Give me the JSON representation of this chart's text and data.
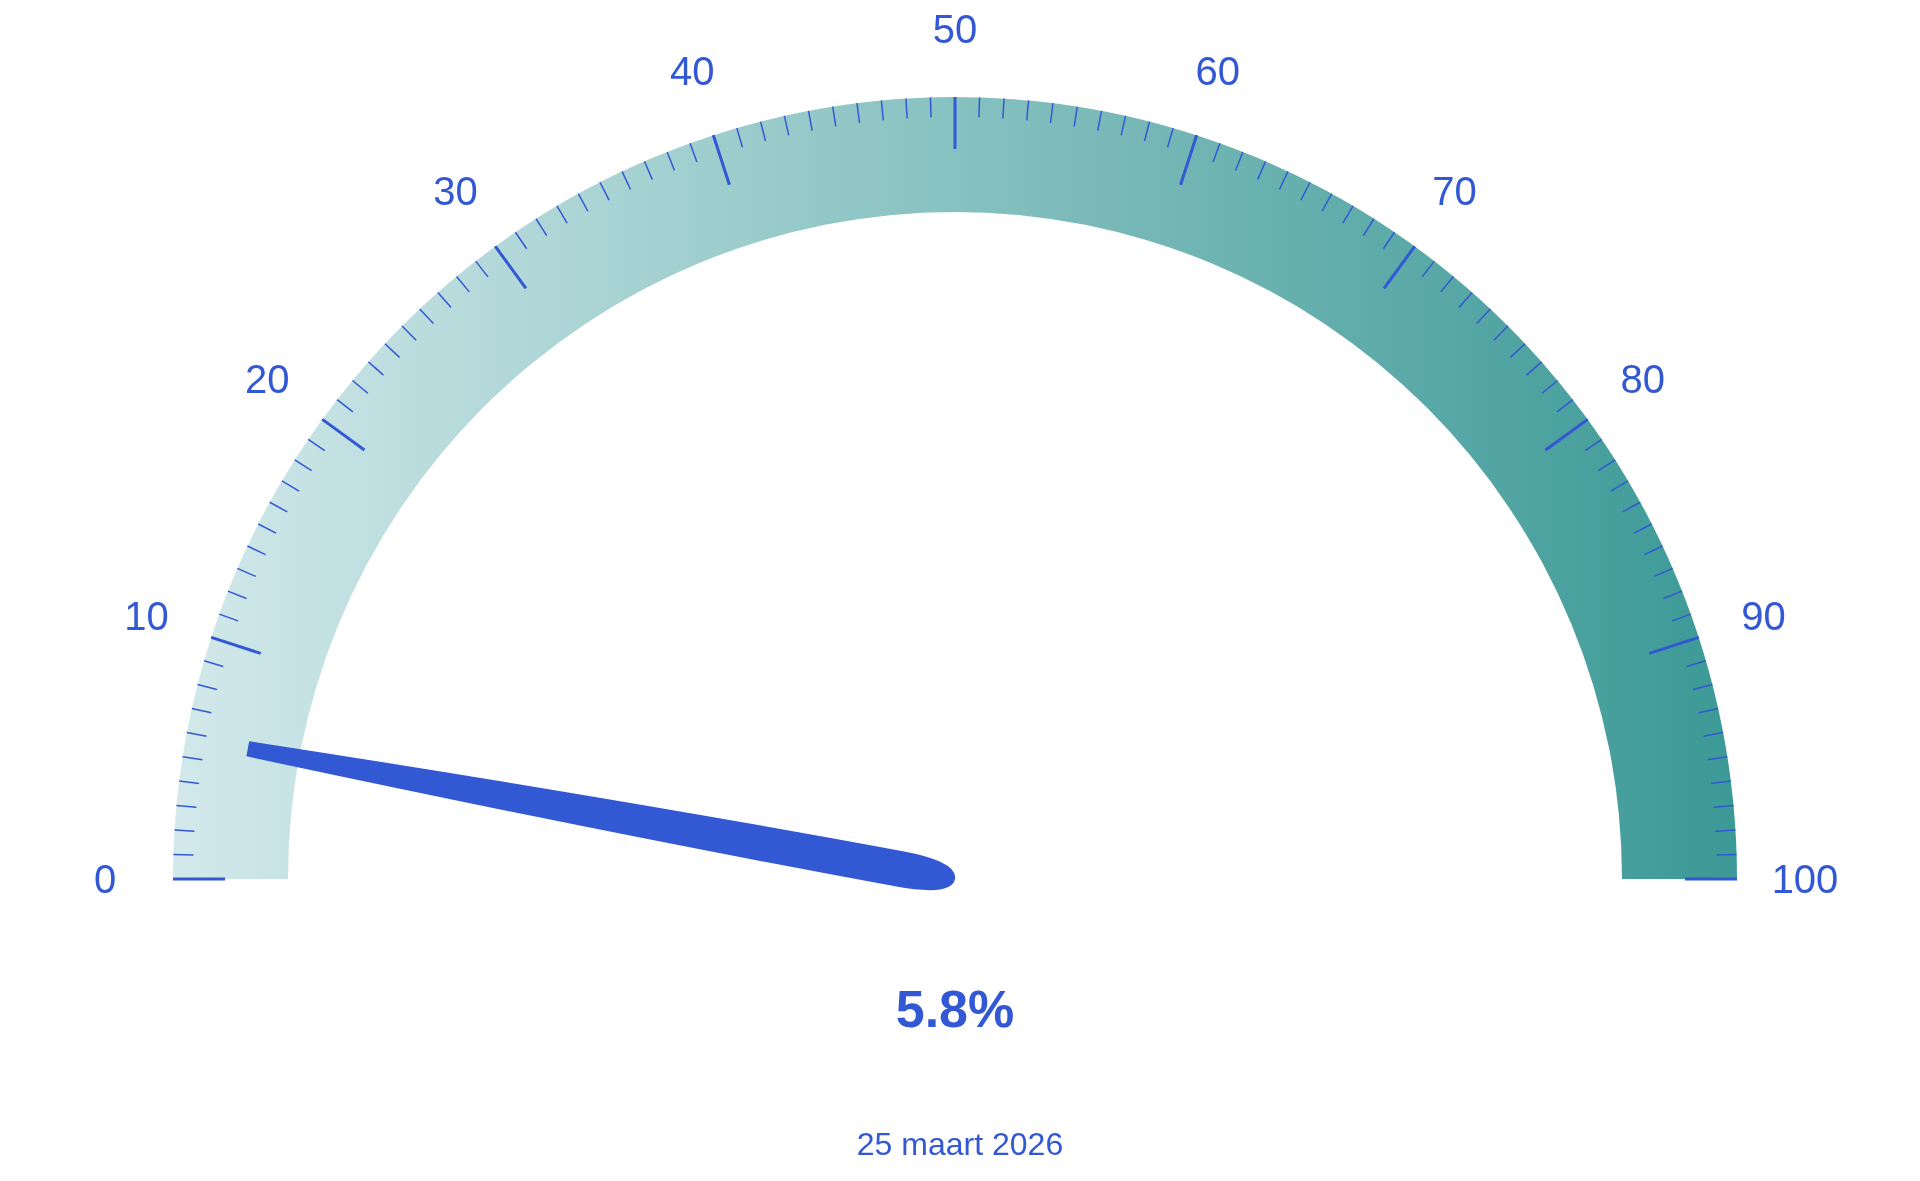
{
  "chart_data": {
    "type": "other",
    "values": [
      5.8
    ],
    "value_labels": [
      "5.8%"
    ],
    "color": "#3358d4",
    "annotations": [
      "0",
      "10",
      "20",
      "30",
      "40",
      "50",
      "60",
      "70",
      "80",
      "90",
      "100",
      "25 maart 2026"
    ]
  }
}
